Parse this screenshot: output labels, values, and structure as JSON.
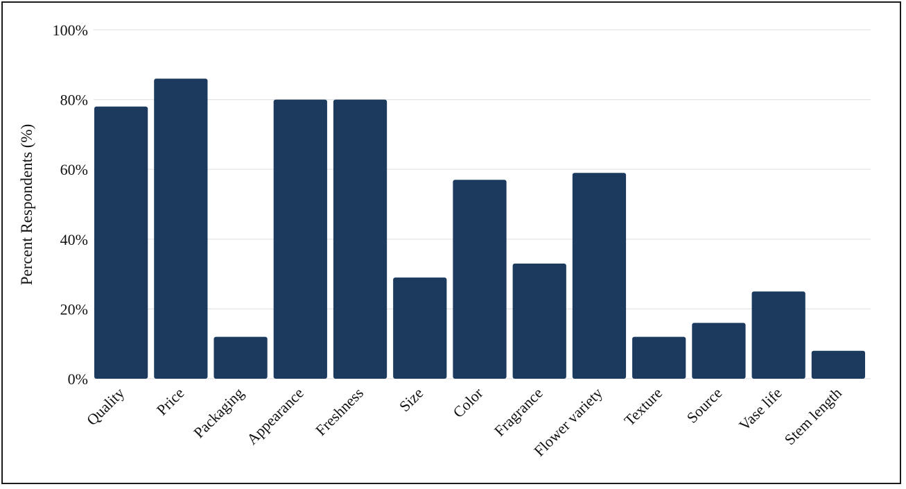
{
  "chart_data": {
    "type": "bar",
    "title": "",
    "xlabel": "",
    "ylabel": "Percent Respondents (%)",
    "ylim": [
      0,
      100
    ],
    "yticks": [
      "0%",
      "20%",
      "40%",
      "60%",
      "80%",
      "100%"
    ],
    "ytick_values": [
      0,
      20,
      40,
      60,
      80,
      100
    ],
    "grid": true,
    "categories": [
      "Quality",
      "Price",
      "Packaging",
      "Appearance",
      "Freshness",
      "Size",
      "Color",
      "Fragrance",
      "Flower variety",
      "Texture",
      "Source",
      "Vase life",
      "Stem length"
    ],
    "values": [
      78,
      86,
      12,
      80,
      80,
      29,
      57,
      33,
      59,
      12,
      16,
      25,
      8
    ],
    "bar_color": "#1b3a5e"
  }
}
